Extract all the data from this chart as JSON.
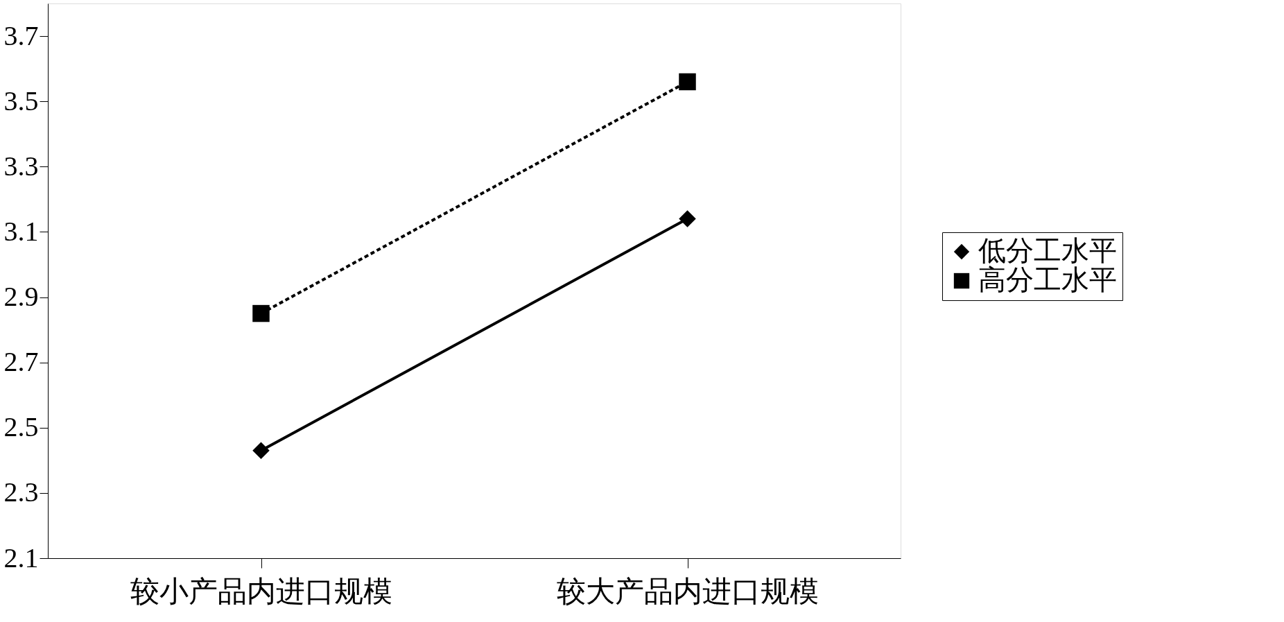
{
  "chart_data": {
    "type": "line",
    "categories": [
      "较小产品内进口规模",
      "较大产品内进口规模"
    ],
    "series": [
      {
        "name": "低分工水平",
        "color": "#000000",
        "values": [
          2.43,
          3.14
        ],
        "marker": "diamond",
        "line_style": "solid"
      },
      {
        "name": "高分工水平",
        "color": "#000000",
        "values": [
          2.85,
          3.56
        ],
        "marker": "square",
        "line_style": "dashed"
      }
    ],
    "ylim": [
      2.1,
      3.8
    ],
    "yticks": [
      2.1,
      2.3,
      2.5,
      2.7,
      2.9,
      3.1,
      3.3,
      3.5,
      3.7
    ],
    "grid": false,
    "legend": "right"
  }
}
